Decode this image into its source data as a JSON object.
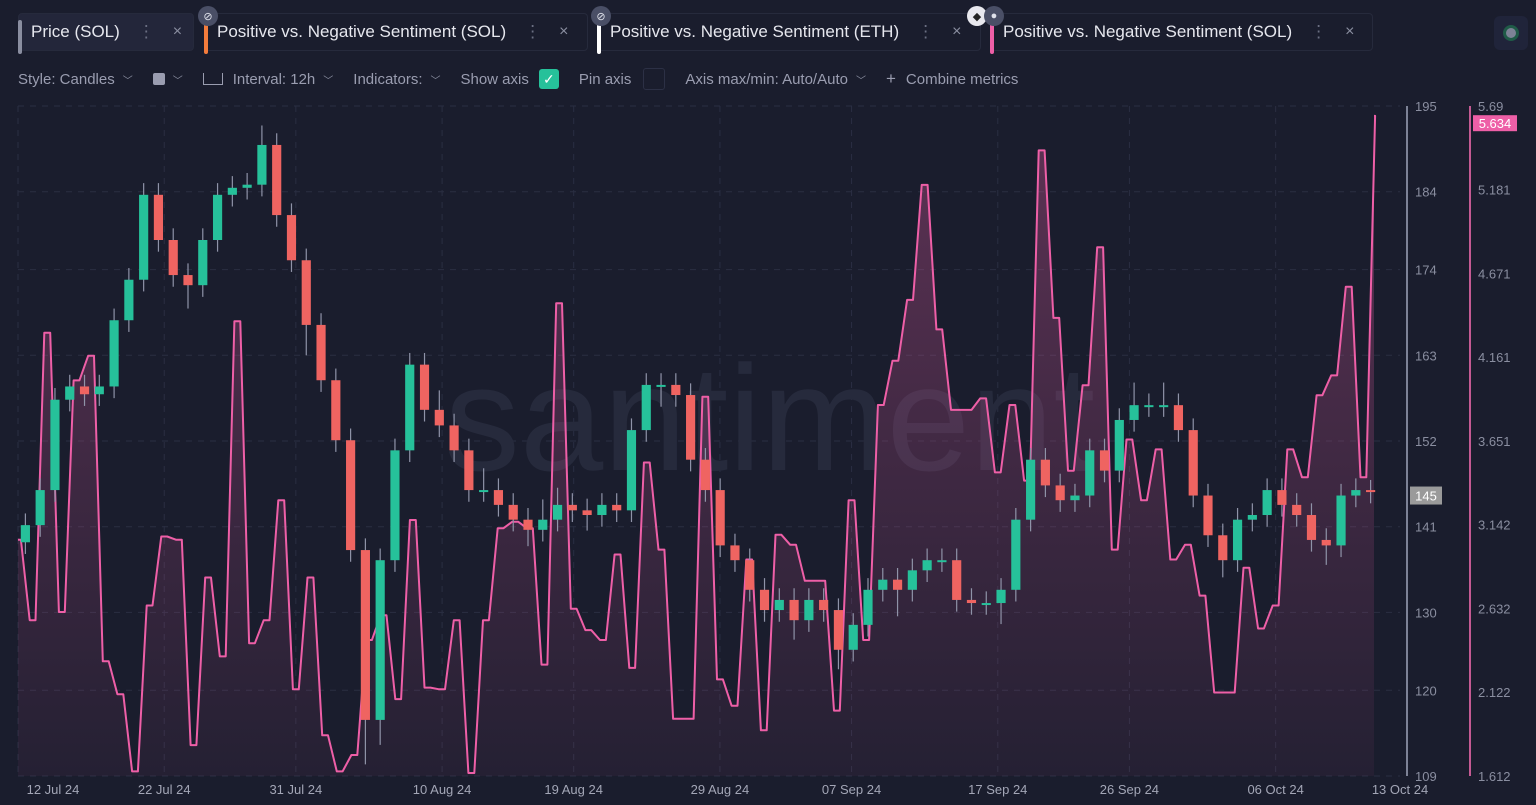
{
  "tabs": [
    {
      "label": "Price (SOL)",
      "color": "#8a8ea0",
      "hidden": false
    },
    {
      "label": "Positive vs. Negative Sentiment (SOL)",
      "color": "#f47c3c",
      "hidden": true
    },
    {
      "label": "Positive vs. Negative Sentiment (ETH)",
      "color": "#ffffff",
      "hidden": true
    },
    {
      "label": "Positive vs. Negative Sentiment (SOL)",
      "color": "#ee5fa7",
      "hidden": false,
      "locked": true
    }
  ],
  "tab_menu_glyph": "⋮",
  "tab_close_glyph": "×",
  "toolbar": {
    "style": "Style: Candles",
    "interval": "Interval: 12h",
    "indicators": "Indicators:",
    "show_axis": "Show axis",
    "show_axis_checked": true,
    "pin_axis": "Pin axis",
    "pin_axis_checked": false,
    "axis_maxmin": "Axis max/min: Auto/Auto",
    "combine": "Combine metrics"
  },
  "watermark": "santiment",
  "colors": {
    "up": "#26c19a",
    "down": "#ef6461",
    "sentiment": "#ee5fa7",
    "accent": "#26c19a",
    "background": "#1a1d2d"
  },
  "chart_data": {
    "type": "candlestick+area",
    "x_range": [
      "2024-07-12",
      "2024-10-13"
    ],
    "x_ticks": [
      "12 Jul 24",
      "22 Jul 24",
      "31 Jul 24",
      "10 Aug 24",
      "19 Aug 24",
      "29 Aug 24",
      "07 Sep 24",
      "17 Sep 24",
      "26 Sep 24",
      "06 Oct 24",
      "13 Oct 24"
    ],
    "grid": true,
    "price": {
      "name": "Price (SOL)",
      "ylim": [
        109,
        195
      ],
      "y_ticks": [
        "195",
        "184",
        "174",
        "163",
        "152",
        "141",
        "130",
        "120",
        "109"
      ],
      "last_value": "145",
      "candles_ohlc": [
        [
          139,
          142.7,
          137.5,
          141.2
        ],
        [
          141.2,
          147.2,
          139.7,
          145.7
        ],
        [
          145.7,
          158.8,
          144.2,
          157.3
        ],
        [
          157.3,
          160.5,
          155.8,
          159
        ],
        [
          159,
          160.5,
          156.5,
          158
        ],
        [
          158,
          160.5,
          156.5,
          159
        ],
        [
          159,
          169,
          157.5,
          167.5
        ],
        [
          167.5,
          174.2,
          166,
          172.7
        ],
        [
          172.7,
          185.1,
          171.2,
          183.6
        ],
        [
          183.6,
          185.1,
          176.3,
          177.8
        ],
        [
          177.8,
          179.3,
          171.8,
          173.3
        ],
        [
          173.3,
          174.8,
          169,
          172
        ],
        [
          172,
          179.3,
          170.5,
          177.8
        ],
        [
          177.8,
          185.1,
          176.3,
          183.6
        ],
        [
          183.6,
          186,
          182.1,
          184.5
        ],
        [
          184.5,
          186.4,
          183,
          184.9
        ],
        [
          184.9,
          192.5,
          183.4,
          190
        ],
        [
          190,
          191.5,
          179.5,
          181
        ],
        [
          181,
          182.5,
          173.7,
          175.2
        ],
        [
          175.2,
          176.7,
          163,
          166.9
        ],
        [
          166.9,
          168.4,
          158.3,
          159.8
        ],
        [
          159.8,
          161.3,
          150.6,
          152.1
        ],
        [
          152.1,
          153.6,
          136.5,
          138
        ],
        [
          138,
          139.5,
          110.5,
          116.2
        ],
        [
          116.2,
          138.2,
          113,
          136.7
        ],
        [
          136.7,
          152.3,
          135.2,
          150.8
        ],
        [
          150.8,
          163.3,
          149.3,
          161.8
        ],
        [
          161.8,
          163.3,
          154.5,
          156
        ],
        [
          156,
          158.5,
          152.5,
          154
        ],
        [
          154,
          155.5,
          149.3,
          150.8
        ],
        [
          150.8,
          152.3,
          144.2,
          145.7
        ],
        [
          145.7,
          148.5,
          144.2,
          145.7
        ],
        [
          145.7,
          147.2,
          142.3,
          143.8
        ],
        [
          143.8,
          145.3,
          140.4,
          141.9
        ],
        [
          141.9,
          143.4,
          138.5,
          140.6
        ],
        [
          140.6,
          144.5,
          139.1,
          141.9
        ],
        [
          141.9,
          146,
          140.4,
          143.8
        ],
        [
          143.8,
          145.3,
          141.6,
          143.1
        ],
        [
          143.1,
          144.6,
          140.5,
          142.5
        ],
        [
          142.5,
          145.3,
          141,
          143.8
        ],
        [
          143.8,
          145.3,
          141.6,
          143.1
        ],
        [
          143.1,
          154.9,
          141.6,
          153.4
        ],
        [
          153.4,
          160.7,
          151.9,
          159.2
        ],
        [
          159.2,
          160.7,
          156.4,
          159.2
        ],
        [
          159.2,
          160.7,
          156.4,
          157.9
        ],
        [
          157.9,
          159.4,
          148.1,
          149.6
        ],
        [
          149.6,
          151.1,
          144.2,
          145.7
        ],
        [
          145.7,
          147.2,
          137.1,
          138.6
        ],
        [
          138.6,
          140.1,
          135.2,
          136.7
        ],
        [
          136.7,
          138.2,
          131.4,
          132.9
        ],
        [
          132.9,
          134.4,
          128.8,
          130.3
        ],
        [
          130.3,
          133.1,
          128.8,
          131.6
        ],
        [
          131.6,
          133.1,
          126.5,
          129
        ],
        [
          129,
          133.1,
          127.5,
          131.6
        ],
        [
          131.6,
          133.1,
          128.8,
          130.3
        ],
        [
          130.3,
          131.8,
          122.7,
          125.2
        ],
        [
          125.2,
          129.9,
          123.7,
          128.4
        ],
        [
          128.4,
          134.4,
          126.9,
          132.9
        ],
        [
          132.9,
          135.7,
          131.4,
          134.2
        ],
        [
          134.2,
          135.7,
          129.5,
          132.9
        ],
        [
          132.9,
          136.9,
          131.4,
          135.4
        ],
        [
          135.4,
          138.2,
          133.9,
          136.7
        ],
        [
          136.7,
          138.2,
          135.2,
          136.7
        ],
        [
          136.7,
          138.2,
          130.1,
          131.6
        ],
        [
          131.6,
          133.1,
          129.7,
          131.2
        ],
        [
          131.2,
          132.7,
          129.7,
          131.2
        ],
        [
          131.2,
          134.4,
          128.5,
          132.9
        ],
        [
          132.9,
          143.4,
          131.4,
          141.9
        ],
        [
          141.9,
          151.1,
          140.4,
          149.6
        ],
        [
          149.6,
          151.1,
          144.8,
          146.3
        ],
        [
          146.3,
          147.8,
          142.9,
          144.4
        ],
        [
          144.4,
          146.5,
          142.9,
          145
        ],
        [
          145,
          152.3,
          143.5,
          150.8
        ],
        [
          150.8,
          152.3,
          146.7,
          148.2
        ],
        [
          148.2,
          156.2,
          146.7,
          154.7
        ],
        [
          154.7,
          159.5,
          153.2,
          156.6
        ],
        [
          156.6,
          158.1,
          155.1,
          156.6
        ],
        [
          156.6,
          159.5,
          155.1,
          156.6
        ],
        [
          156.6,
          158.1,
          151.9,
          153.4
        ],
        [
          153.4,
          154.9,
          143.5,
          145
        ],
        [
          145,
          146.5,
          138.4,
          139.9
        ],
        [
          139.9,
          141.4,
          134.5,
          136.7
        ],
        [
          136.7,
          143.4,
          135.2,
          141.9
        ],
        [
          141.9,
          144,
          140.4,
          142.5
        ],
        [
          142.5,
          147.2,
          141,
          145.7
        ],
        [
          145.7,
          147.2,
          142.3,
          143.8
        ],
        [
          143.8,
          145.3,
          141,
          142.5
        ],
        [
          142.5,
          144,
          137.8,
          139.3
        ],
        [
          139.3,
          140.8,
          136.1,
          138.6
        ],
        [
          138.6,
          146.5,
          137.1,
          145
        ],
        [
          145,
          147.2,
          143.5,
          145.7
        ],
        [
          145.7,
          147,
          144,
          145.5
        ]
      ]
    },
    "sentiment": {
      "name": "Positive vs. Negative Sentiment (SOL)",
      "ylim": [
        1.612,
        5.69
      ],
      "y_ticks": [
        "5.69",
        "5.181",
        "4.671",
        "4.161",
        "3.651",
        "3.142",
        "2.632",
        "2.122",
        "1.612"
      ],
      "last_value": "5.634",
      "values": [
        3.05,
        2.56,
        4.31,
        2.61,
        4.02,
        4.17,
        2.31,
        2.11,
        1.64,
        2.65,
        3.07,
        3.05,
        1.8,
        2.82,
        2.34,
        4.38,
        2.42,
        2.56,
        3.29,
        2.14,
        2.82,
        1.86,
        1.64,
        1.74,
        2.44,
        2.59,
        2.08,
        3.17,
        2.15,
        2.14,
        2.56,
        1.63,
        2.56,
        3.12,
        3.16,
        3.12,
        2.29,
        4.49,
        2.63,
        2.5,
        2.44,
        2.96,
        2.27,
        3.52,
        2.99,
        1.96,
        1.96,
        3.92,
        2.2,
        2.04,
        2.93,
        1.89,
        3.08,
        3.02,
        2.8,
        2.8,
        2.01,
        3.29,
        2.44,
        3.87,
        4.14,
        4.51,
        5.21,
        4.33,
        3.84,
        3.84,
        3.91,
        3.46,
        3.87,
        3.41,
        5.42,
        4.4,
        3.47,
        3.99,
        4.83,
        2.99,
        3.66,
        3.29,
        3.6,
        2.93,
        3.02,
        2.71,
        2.12,
        2.12,
        2.88,
        2.51,
        2.65,
        3.6,
        3.43,
        3.93,
        4.05,
        4.59,
        3.43,
        5.63
      ]
    }
  }
}
